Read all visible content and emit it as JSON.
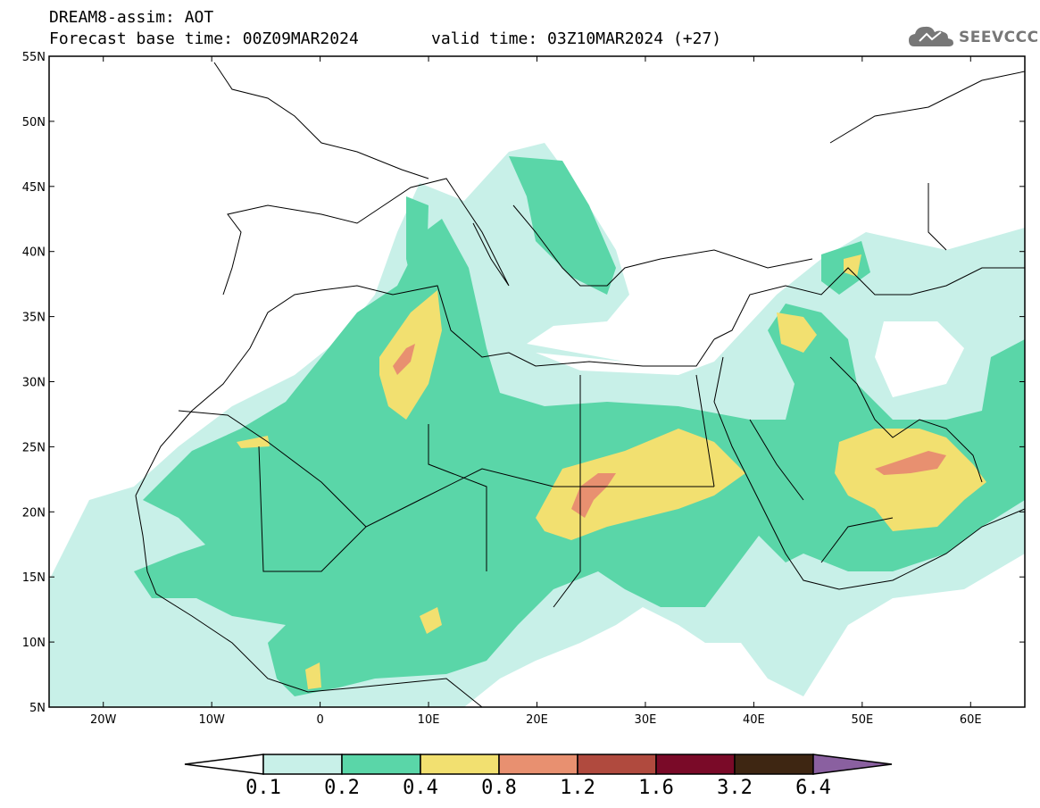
{
  "header": {
    "model_line": "DREAM8-assim: AOT",
    "base_time": "Forecast base time: 00Z09MAR2024",
    "valid_time": "valid time: 03Z10MAR2024 (+27)"
  },
  "logo": {
    "text": "SEEVCCC",
    "icon": "cloud-icon"
  },
  "map": {
    "lon_range": [
      -25,
      65
    ],
    "lat_range": [
      5,
      55
    ],
    "lon_ticks": [
      {
        "lon": -20,
        "label": "20W"
      },
      {
        "lon": -10,
        "label": "10W"
      },
      {
        "lon": 0,
        "label": "0"
      },
      {
        "lon": 10,
        "label": "10E"
      },
      {
        "lon": 20,
        "label": "20E"
      },
      {
        "lon": 30,
        "label": "30E"
      },
      {
        "lon": 40,
        "label": "40E"
      },
      {
        "lon": 50,
        "label": "50E"
      },
      {
        "lon": 60,
        "label": "60E"
      }
    ],
    "lat_ticks": [
      {
        "lat": 55,
        "label": "55N"
      },
      {
        "lat": 50,
        "label": "50N"
      },
      {
        "lat": 45,
        "label": "45N"
      },
      {
        "lat": 40,
        "label": "40N"
      },
      {
        "lat": 35,
        "label": "35N"
      },
      {
        "lat": 30,
        "label": "30N"
      },
      {
        "lat": 25,
        "label": "25N"
      },
      {
        "lat": 20,
        "label": "20N"
      },
      {
        "lat": 15,
        "label": "15N"
      },
      {
        "lat": 10,
        "label": "10N"
      },
      {
        "lat": 5,
        "label": "5N"
      }
    ]
  },
  "colorbar": {
    "colors": [
      "#c8f0e8",
      "#5ad6a8",
      "#f2e070",
      "#e89070",
      "#b04a3e",
      "#7a0a28",
      "#3e2612",
      "#8a60a0"
    ],
    "levels": [
      "0.1",
      "0.2",
      "0.4",
      "0.8",
      "1.2",
      "1.6",
      "3.2",
      "6.4"
    ]
  }
}
